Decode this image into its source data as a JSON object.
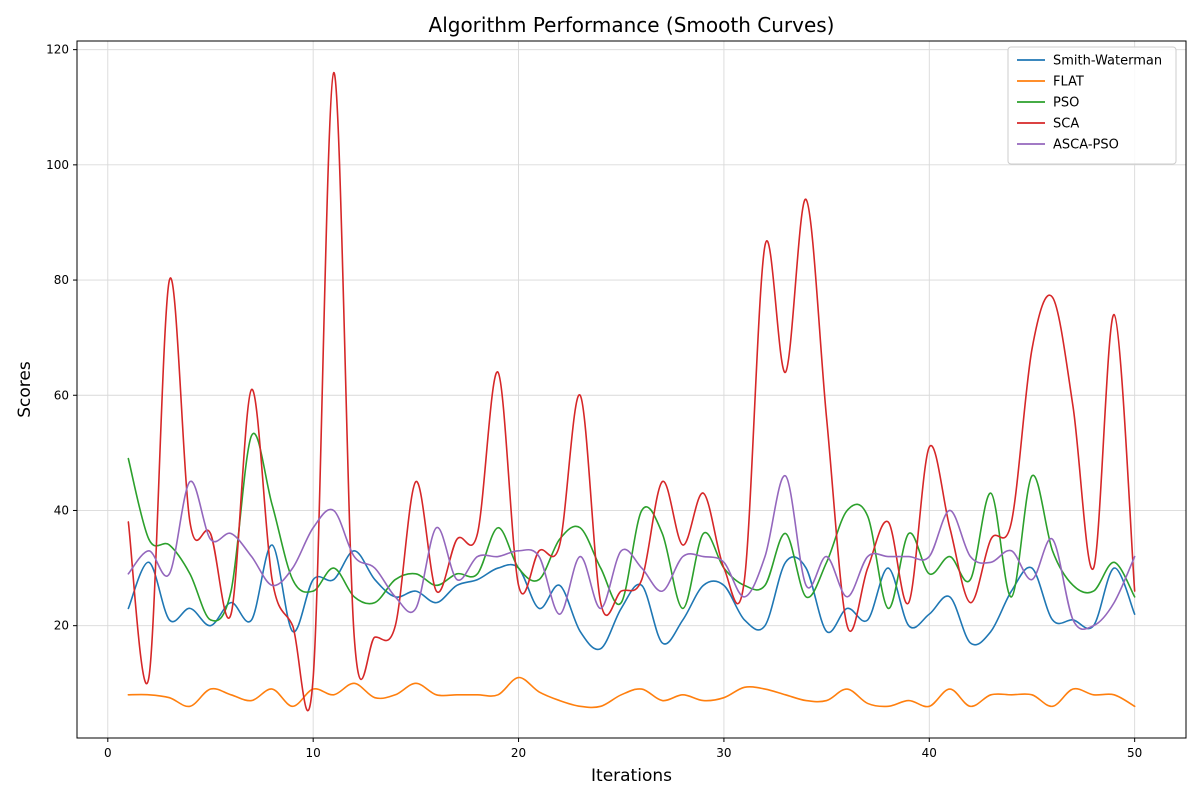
{
  "chart_data": {
    "type": "line",
    "title": "Algorithm Performance (Smooth Curves)",
    "xlabel": "Iterations",
    "ylabel": "Scores",
    "xlim": [
      -1.5,
      52.5
    ],
    "ylim": [
      0.5,
      121.5
    ],
    "xticks": [
      0,
      10,
      20,
      30,
      40,
      50
    ],
    "yticks": [
      20,
      40,
      60,
      80,
      100,
      120
    ],
    "grid": true,
    "legend_position": "top-right",
    "x": [
      1,
      2,
      3,
      4,
      5,
      6,
      7,
      8,
      9,
      10,
      11,
      12,
      13,
      14,
      15,
      16,
      17,
      18,
      19,
      20,
      21,
      22,
      23,
      24,
      25,
      26,
      27,
      28,
      29,
      30,
      31,
      32,
      33,
      34,
      35,
      36,
      37,
      38,
      39,
      40,
      41,
      42,
      43,
      44,
      45,
      46,
      47,
      48,
      49,
      50
    ],
    "series": [
      {
        "name": "Smith-Waterman",
        "color": "#1f77b4",
        "values": [
          23,
          31,
          21,
          23,
          20,
          24,
          21,
          34,
          19,
          28,
          28,
          33,
          28,
          25,
          26,
          24,
          27,
          28,
          30,
          30,
          23,
          27,
          19,
          16,
          23,
          27,
          17,
          21,
          27,
          27,
          21,
          20,
          31,
          30,
          19,
          23,
          21,
          30,
          20,
          22,
          25,
          17,
          19,
          26,
          30,
          21,
          21,
          20,
          30,
          22
        ]
      },
      {
        "name": "FLAT",
        "color": "#ff7f0e",
        "values": [
          8,
          8,
          7.5,
          6,
          9,
          8,
          7,
          9,
          6,
          9,
          8,
          10,
          7.5,
          8,
          10,
          8,
          8,
          8,
          8,
          11,
          8.5,
          7,
          6,
          6,
          8,
          9,
          7,
          8,
          7,
          7.5,
          9.3,
          9,
          8,
          7,
          7,
          9,
          6.5,
          6,
          7,
          6,
          9,
          6,
          8,
          8,
          8,
          6,
          9,
          8,
          8,
          6
        ]
      },
      {
        "name": "PSO",
        "color": "#2ca02c",
        "values": [
          49,
          35,
          34,
          29,
          21,
          26,
          53,
          41,
          28,
          26,
          30,
          25,
          24,
          28,
          29,
          27,
          29,
          29,
          37,
          30,
          28,
          35,
          37,
          30,
          24,
          40,
          36,
          23,
          36,
          30,
          27,
          27,
          36,
          25,
          31,
          40,
          39,
          23,
          36,
          29,
          32,
          28,
          43,
          25,
          46,
          33,
          27,
          26,
          31,
          25
        ]
      },
      {
        "name": "SCA",
        "color": "#d62728",
        "values": [
          38,
          11,
          80,
          38,
          36,
          22,
          61,
          28,
          20,
          11,
          116,
          18,
          18,
          20,
          45,
          26,
          35,
          36,
          64,
          27,
          33,
          34,
          60,
          24,
          26,
          28,
          45,
          34,
          43,
          30,
          28,
          86,
          64,
          94,
          56,
          20,
          30,
          38,
          24,
          51,
          37,
          24,
          35,
          38,
          68,
          77,
          58,
          30,
          74,
          26
        ]
      },
      {
        "name": "ASCA-PSO",
        "color": "#9467bd",
        "values": [
          29,
          33,
          29,
          45,
          35,
          36,
          32,
          27,
          30,
          37,
          40,
          32,
          30,
          25,
          23,
          37,
          28,
          32,
          32,
          33,
          32,
          22,
          32,
          23,
          33,
          30,
          26,
          32,
          32,
          31,
          25,
          32,
          46,
          27,
          32,
          25,
          32,
          32,
          32,
          32,
          40,
          32,
          31,
          33,
          28,
          35,
          21,
          20,
          24,
          32
        ]
      }
    ]
  }
}
